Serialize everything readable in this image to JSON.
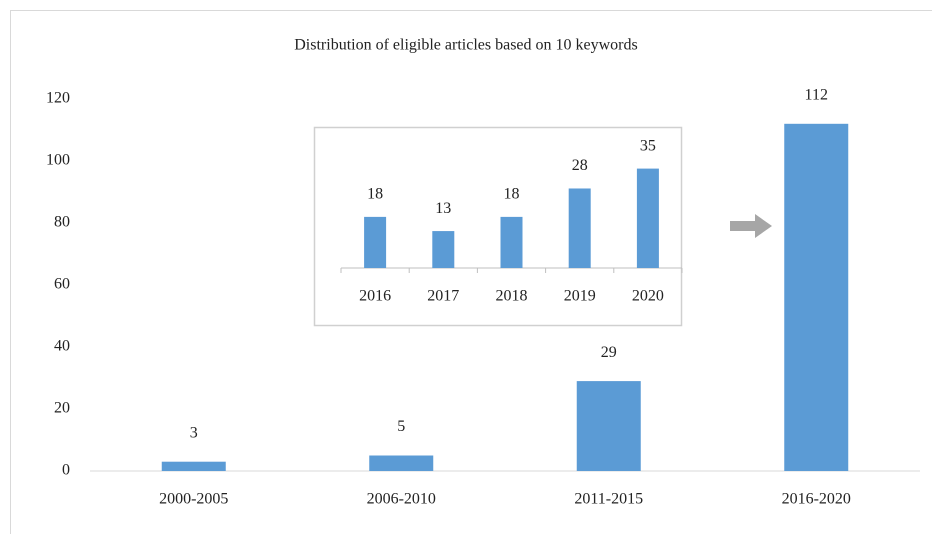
{
  "chart_data": [
    {
      "type": "bar",
      "title": "Distribution of eligible articles based on 10 keywords",
      "categories": [
        "2000-2005",
        "2006-2010",
        "2011-2015",
        "2016-2020"
      ],
      "values": [
        3,
        5,
        29,
        112
      ],
      "color": "#5b9bd5",
      "ylim": [
        0,
        120
      ],
      "yticks": [
        0,
        20,
        40,
        60,
        80,
        100,
        120
      ],
      "grid": false
    },
    {
      "type": "bar",
      "categories": [
        "2016",
        "2017",
        "2018",
        "2019",
        "2020"
      ],
      "values": [
        18,
        13,
        18,
        28,
        35
      ],
      "color": "#5b9bd5"
    }
  ]
}
